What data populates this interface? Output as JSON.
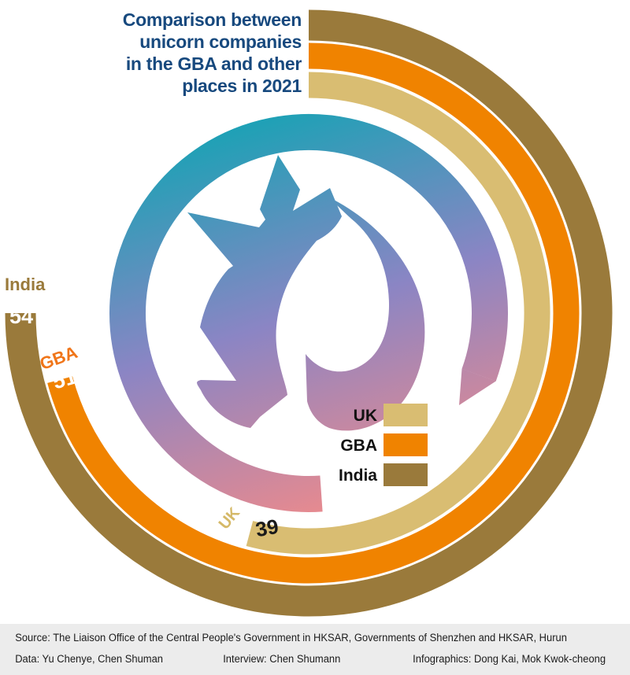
{
  "title": {
    "lines": [
      "Comparison between",
      "unicorn companies",
      "in the GBA and other",
      "places in 2021"
    ]
  },
  "chart_data": {
    "type": "radial_bar",
    "title": "Comparison between unicorn companies in the GBA and other places in 2021",
    "categories": [
      "UK",
      "GBA",
      "India"
    ],
    "series": [
      {
        "name": "UK",
        "value": 39,
        "color": "#d9bd72",
        "name_label_color": "#d5b968",
        "value_label_color": "#1a1a1a"
      },
      {
        "name": "GBA",
        "value": 51,
        "color": "#f08300",
        "name_label_color": "#f07519",
        "value_label_color": "#ffffff"
      },
      {
        "name": "India",
        "value": 54,
        "color": "#9a7a3b",
        "name_label_color": "#9a7a3b",
        "value_label_color": "#ffffff"
      }
    ],
    "angle_degrees_per_unit": 5,
    "arc_start": "top, clockwise",
    "legend_position": "center-right",
    "grid": false
  },
  "colors": {
    "title_text": "#17497e",
    "footer_background": "#ececec",
    "logo_gradient_start": "#1aa2b5",
    "logo_gradient_mid": "#8b85c4",
    "logo_gradient_end": "#ec8a8c"
  },
  "footer": {
    "source": "Source: The Liaison Office of the Central People's Government in HKSAR,  Governments of Shenzhen and HKSAR, Hurun",
    "data": "Data: Yu Chenye, Chen Shuman",
    "interview": "Interview: Chen Shumann",
    "infographics": "Infographics: Dong Kai, Mok Kwok-cheong"
  }
}
